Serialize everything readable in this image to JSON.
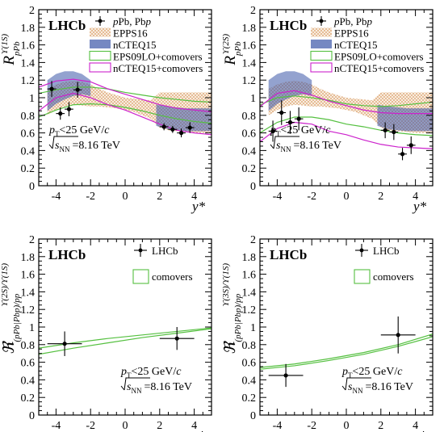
{
  "chart_data": [
    {
      "type": "scatter",
      "panel": "upper-left",
      "ylabel_main": "R",
      "ylabel_sup": "ϒ(1S)",
      "ylabel_sub": "pPb",
      "xlabel": "y*",
      "xlim": [
        -5,
        5
      ],
      "ylim": [
        0,
        2
      ],
      "xticks": [
        -4,
        -2,
        0,
        2,
        4
      ],
      "yticks": [
        0,
        0.2,
        0.4,
        0.6,
        0.8,
        1,
        1.2,
        1.4,
        1.6,
        1.8,
        2
      ],
      "watermark": "LHCb",
      "cut_label": "pT<25 GeV/c",
      "energy_label": "√sNN=8.16 TeV",
      "legend": [
        "pPb, Pbp",
        "EPPS16",
        "nCTEQ15",
        "EPS09LO+comovers",
        "nCTEQ15+comovers"
      ],
      "data": {
        "name": "pPb, Pbp",
        "points": [
          {
            "x": -4.25,
            "y": 1.1,
            "ey": 0.09,
            "ex": 0.25
          },
          {
            "x": -3.75,
            "y": 0.82,
            "ey": 0.07,
            "ex": 0.25
          },
          {
            "x": -3.25,
            "y": 0.87,
            "ey": 0.08,
            "ex": 0.25
          },
          {
            "x": -2.75,
            "y": 1.09,
            "ey": 0.09,
            "ex": 0.25
          },
          {
            "x": 2.25,
            "y": 0.67,
            "ey": 0.04,
            "ex": 0.25
          },
          {
            "x": 2.75,
            "y": 0.64,
            "ey": 0.04,
            "ex": 0.25
          },
          {
            "x": 3.25,
            "y": 0.6,
            "ey": 0.05,
            "ex": 0.25
          },
          {
            "x": 3.75,
            "y": 0.66,
            "ey": 0.06,
            "ex": 0.25
          }
        ]
      },
      "bands": [
        {
          "name": "EPPS16",
          "color": "#e8a060",
          "x": [
            -4.5,
            -4,
            -3.5,
            -3,
            -2.5,
            -2,
            -1.5,
            -1,
            -0.5,
            0,
            0.5,
            1,
            1.5,
            2,
            2.5,
            3,
            3.5,
            4,
            4.5,
            5
          ],
          "lo": [
            0.8,
            0.86,
            0.9,
            0.92,
            0.91,
            0.9,
            0.9,
            0.89,
            0.88,
            0.86,
            0.84,
            0.8,
            0.76,
            0.66,
            0.63,
            0.62,
            0.61,
            0.6,
            0.6,
            0.6
          ],
          "hi": [
            1.1,
            1.15,
            1.18,
            1.19,
            1.18,
            1.15,
            1.1,
            1.06,
            1.03,
            1.0,
            0.99,
            0.98,
            0.97,
            1.06,
            1.06,
            1.06,
            1.06,
            1.06,
            1.06,
            1.06
          ]
        },
        {
          "name": "nCTEQ15",
          "color": "#3a55a8",
          "x": [
            -4.5,
            -4,
            -3.5,
            -3,
            -2.5,
            -2
          ],
          "lo": [
            0.85,
            0.93,
            0.98,
            1.02,
            1.04,
            1.02
          ],
          "hi": [
            1.2,
            1.27,
            1.3,
            1.3,
            1.27,
            1.2
          ],
          "x2": [
            1.8,
            2.5,
            3,
            3.5,
            4,
            4.5,
            5
          ],
          "lo2": [
            0.68,
            0.64,
            0.63,
            0.62,
            0.62,
            0.62,
            0.62
          ],
          "hi2": [
            0.92,
            0.9,
            0.89,
            0.88,
            0.88,
            0.88,
            0.88
          ]
        }
      ],
      "curves": [
        {
          "name": "EPS09LO+comovers",
          "color": "#55c040",
          "x": [
            -5,
            -4,
            -3,
            -2,
            -1,
            0,
            1,
            2,
            3,
            4,
            5
          ],
          "lo": [
            0.78,
            0.86,
            0.92,
            0.93,
            0.92,
            0.89,
            0.85,
            0.8,
            0.76,
            0.73,
            0.71
          ],
          "hi": [
            1.05,
            1.09,
            1.12,
            1.12,
            1.1,
            1.06,
            1.03,
            1.0,
            0.98,
            0.96,
            0.95
          ]
        },
        {
          "name": "nCTEQ15+comovers",
          "color": "#cc22cc",
          "x": [
            -5,
            -4,
            -3,
            -2,
            -1,
            0,
            1,
            2,
            3,
            4,
            5
          ],
          "lo": [
            0.85,
            1.0,
            1.05,
            1.0,
            0.92,
            0.86,
            0.78,
            0.7,
            0.63,
            0.6,
            0.58
          ],
          "hi": [
            1.12,
            1.19,
            1.21,
            1.18,
            1.1,
            1.04,
            0.98,
            0.92,
            0.88,
            0.86,
            0.84
          ]
        }
      ]
    },
    {
      "type": "scatter",
      "panel": "upper-right",
      "ylabel_main": "R",
      "ylabel_sup": "ϒ(2S)",
      "ylabel_sub": "pPb",
      "xlabel": "y*",
      "xlim": [
        -5,
        5
      ],
      "ylim": [
        0,
        2
      ],
      "xticks": [
        -4,
        -2,
        0,
        2,
        4
      ],
      "yticks": [
        0,
        0.2,
        0.4,
        0.6,
        0.8,
        1,
        1.2,
        1.4,
        1.6,
        1.8,
        2
      ],
      "watermark": "LHCb",
      "cut_label": "pT<25 GeV/c",
      "energy_label": "√sNN=8.16 TeV",
      "legend": [
        "pPb, Pbp",
        "EPPS16",
        "nCTEQ15",
        "EPS09LO+comovers",
        "nCTEQ15+comovers"
      ],
      "data": {
        "name": "pPb, Pbp",
        "points": [
          {
            "x": -4.25,
            "y": 0.62,
            "ey": 0.12,
            "ex": 0.25
          },
          {
            "x": -3.75,
            "y": 0.83,
            "ey": 0.14,
            "ex": 0.25
          },
          {
            "x": -3.25,
            "y": 0.72,
            "ey": 0.13,
            "ex": 0.25
          },
          {
            "x": -2.75,
            "y": 0.76,
            "ey": 0.13,
            "ex": 0.25
          },
          {
            "x": 2.25,
            "y": 0.63,
            "ey": 0.09,
            "ex": 0.25
          },
          {
            "x": 2.75,
            "y": 0.61,
            "ey": 0.09,
            "ex": 0.25
          },
          {
            "x": 3.25,
            "y": 0.36,
            "ey": 0.07,
            "ex": 0.25
          },
          {
            "x": 3.75,
            "y": 0.46,
            "ey": 0.1,
            "ex": 0.25
          }
        ]
      },
      "bands": [
        {
          "name": "EPPS16",
          "color": "#e8a060",
          "x": [
            -4.5,
            -4,
            -3.5,
            -3,
            -2.5,
            -2,
            -1.5,
            -1,
            -0.5,
            0,
            0.5,
            1,
            1.5,
            2,
            2.5,
            3,
            3.5,
            4,
            4.5,
            5
          ],
          "lo": [
            0.8,
            0.86,
            0.9,
            0.92,
            0.91,
            0.9,
            0.9,
            0.89,
            0.88,
            0.86,
            0.84,
            0.8,
            0.76,
            0.66,
            0.63,
            0.62,
            0.61,
            0.6,
            0.6,
            0.6
          ],
          "hi": [
            1.1,
            1.15,
            1.18,
            1.19,
            1.18,
            1.15,
            1.1,
            1.06,
            1.03,
            1.0,
            0.99,
            0.98,
            0.97,
            1.06,
            1.06,
            1.06,
            1.06,
            1.06,
            1.06,
            1.06
          ]
        },
        {
          "name": "nCTEQ15",
          "color": "#3a55a8",
          "x": [
            -4.5,
            -4,
            -3.5,
            -3,
            -2.5,
            -2
          ],
          "lo": [
            0.85,
            0.93,
            0.98,
            1.02,
            1.04,
            1.02
          ],
          "hi": [
            1.2,
            1.27,
            1.3,
            1.3,
            1.27,
            1.2
          ],
          "x2": [
            1.8,
            2.5,
            3,
            3.5,
            4,
            4.5,
            5
          ],
          "lo2": [
            0.68,
            0.64,
            0.63,
            0.62,
            0.62,
            0.62,
            0.62
          ],
          "hi2": [
            0.92,
            0.9,
            0.89,
            0.88,
            0.88,
            0.88,
            0.88
          ]
        }
      ],
      "curves": [
        {
          "name": "EPS09LO+comovers",
          "color": "#55c040",
          "x": [
            -5,
            -4,
            -3,
            -2,
            -1,
            0,
            1,
            2,
            3,
            4,
            5
          ],
          "lo": [
            0.6,
            0.72,
            0.78,
            0.78,
            0.75,
            0.7,
            0.67,
            0.63,
            0.6,
            0.58,
            0.57
          ],
          "hi": [
            0.92,
            1.0,
            1.02,
            1.0,
            0.97,
            0.93,
            0.91,
            0.9,
            0.91,
            0.93,
            0.95
          ]
        },
        {
          "name": "nCTEQ15+comovers",
          "color": "#cc22cc",
          "x": [
            -5,
            -4,
            -3,
            -2,
            -1,
            0,
            1,
            2,
            3,
            4,
            5
          ],
          "lo": [
            0.5,
            0.65,
            0.72,
            0.7,
            0.62,
            0.58,
            0.52,
            0.47,
            0.44,
            0.43,
            0.42
          ],
          "hi": [
            0.9,
            1.05,
            1.08,
            1.03,
            0.96,
            0.91,
            0.86,
            0.83,
            0.82,
            0.82,
            0.82
          ]
        }
      ]
    },
    {
      "type": "scatter",
      "panel": "lower-left",
      "ylabel_main": "ℜ",
      "ylabel_sup": "ϒ(2S)/ϒ(1S)",
      "ylabel_sub": "(pPb|Pbp)/pp",
      "xlabel": "y*",
      "xlim": [
        -5,
        5
      ],
      "ylim": [
        0,
        2
      ],
      "xticks": [
        -4,
        -2,
        0,
        2,
        4
      ],
      "yticks": [
        0,
        0.2,
        0.4,
        0.6,
        0.8,
        1,
        1.2,
        1.4,
        1.6,
        1.8,
        2
      ],
      "watermark": "LHCb",
      "cut_label": "pT<25 GeV/c",
      "energy_label": "√sNN=8.16 TeV",
      "legend": [
        "LHCb",
        "comovers"
      ],
      "data": {
        "name": "LHCb",
        "points": [
          {
            "x": -3.5,
            "y": 0.81,
            "ey": 0.14,
            "ex": 1.0
          },
          {
            "x": 3.0,
            "y": 0.87,
            "ey": 0.13,
            "ex": 1.0
          }
        ]
      },
      "bands": [],
      "curves": [
        {
          "name": "comovers",
          "color": "#55c040",
          "x": [
            -5,
            -3,
            -1,
            1,
            3,
            5
          ],
          "lo": [
            0.69,
            0.76,
            0.82,
            0.88,
            0.93,
            0.98
          ],
          "hi": [
            0.76,
            0.82,
            0.87,
            0.91,
            0.95,
            0.99
          ]
        }
      ]
    },
    {
      "type": "scatter",
      "panel": "lower-right",
      "ylabel_main": "ℜ",
      "ylabel_sup": "ϒ(3S)/ϒ(1S)",
      "ylabel_sub": "(pPb|Pbp)/pp",
      "xlabel": "y*",
      "xlim": [
        -5,
        5
      ],
      "ylim": [
        0,
        2
      ],
      "xticks": [
        -4,
        -2,
        0,
        2,
        4
      ],
      "yticks": [
        0,
        0.2,
        0.4,
        0.6,
        0.8,
        1,
        1.2,
        1.4,
        1.6,
        1.8,
        2
      ],
      "watermark": "LHCb",
      "cut_label": "pT<25 GeV/c",
      "energy_label": "√sNN=8.16 TeV",
      "legend": [
        "LHCb",
        "comovers"
      ],
      "data": {
        "name": "LHCb",
        "points": [
          {
            "x": -3.5,
            "y": 0.45,
            "ey": 0.13,
            "ex": 1.0
          },
          {
            "x": 3.0,
            "y": 0.91,
            "ey": 0.21,
            "ex": 1.0
          }
        ]
      },
      "bands": [],
      "curves": [
        {
          "name": "comovers",
          "color": "#55c040",
          "x": [
            -5,
            -3,
            -1,
            1,
            3,
            5
          ],
          "lo": [
            0.52,
            0.56,
            0.62,
            0.69,
            0.78,
            0.89
          ],
          "hi": [
            0.54,
            0.58,
            0.64,
            0.71,
            0.8,
            0.92
          ]
        }
      ]
    }
  ]
}
